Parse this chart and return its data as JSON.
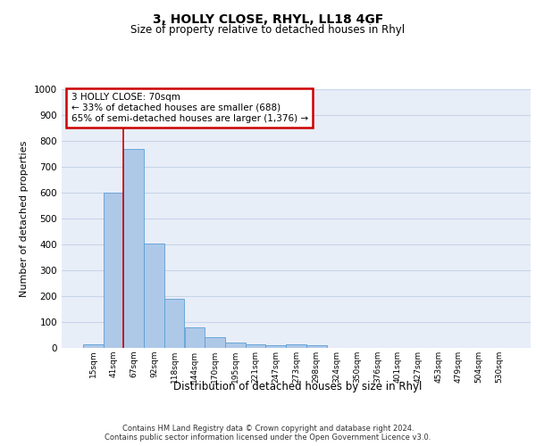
{
  "title": "3, HOLLY CLOSE, RHYL, LL18 4GF",
  "subtitle": "Size of property relative to detached houses in Rhyl",
  "xlabel": "Distribution of detached houses by size in Rhyl",
  "ylabel": "Number of detached properties",
  "categories": [
    "15sqm",
    "41sqm",
    "67sqm",
    "92sqm",
    "118sqm",
    "144sqm",
    "170sqm",
    "195sqm",
    "221sqm",
    "247sqm",
    "273sqm",
    "298sqm",
    "324sqm",
    "350sqm",
    "376sqm",
    "401sqm",
    "427sqm",
    "453sqm",
    "479sqm",
    "504sqm",
    "530sqm"
  ],
  "bar_heights": [
    15,
    600,
    770,
    405,
    190,
    78,
    40,
    20,
    15,
    10,
    15,
    10,
    0,
    0,
    0,
    0,
    0,
    0,
    0,
    0,
    0
  ],
  "bar_color": "#aec8e8",
  "bar_edge_color": "#5a9fd4",
  "vline_x": 1.5,
  "vline_color": "#cc0000",
  "annotation_text": "3 HOLLY CLOSE: 70sqm\n← 33% of detached houses are smaller (688)\n65% of semi-detached houses are larger (1,376) →",
  "annotation_box_color": "#cc0000",
  "ylim": [
    0,
    1000
  ],
  "yticks": [
    0,
    100,
    200,
    300,
    400,
    500,
    600,
    700,
    800,
    900,
    1000
  ],
  "grid_color": "#c8d4e8",
  "background_color": "#e8eef8",
  "footer_text": "Contains HM Land Registry data © Crown copyright and database right 2024.\nContains public sector information licensed under the Open Government Licence v3.0.",
  "figsize": [
    6.0,
    5.0
  ],
  "dpi": 100
}
